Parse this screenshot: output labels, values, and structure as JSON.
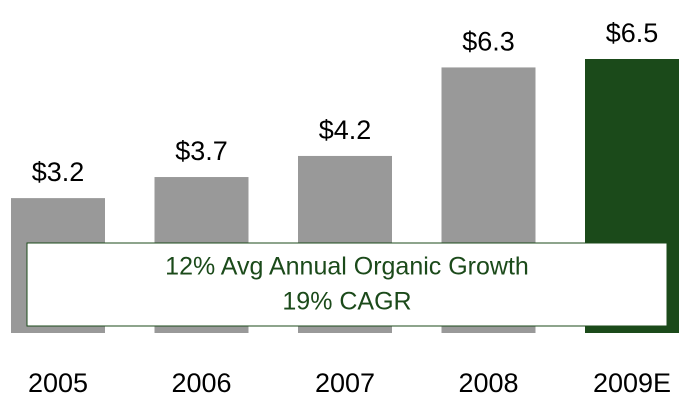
{
  "chart_data": {
    "type": "bar",
    "categories": [
      "2005",
      "2006",
      "2007",
      "2008",
      "2009E"
    ],
    "values": [
      3.2,
      3.7,
      4.2,
      6.3,
      6.5
    ],
    "value_labels": [
      "$3.2",
      "$3.7",
      "$4.2",
      "$6.3",
      "$6.5"
    ],
    "colors": [
      "#999999",
      "#999999",
      "#999999",
      "#999999",
      "#1b4a1a"
    ],
    "annotations": [
      "12% Avg Annual Organic Growth",
      "19% CAGR"
    ]
  }
}
